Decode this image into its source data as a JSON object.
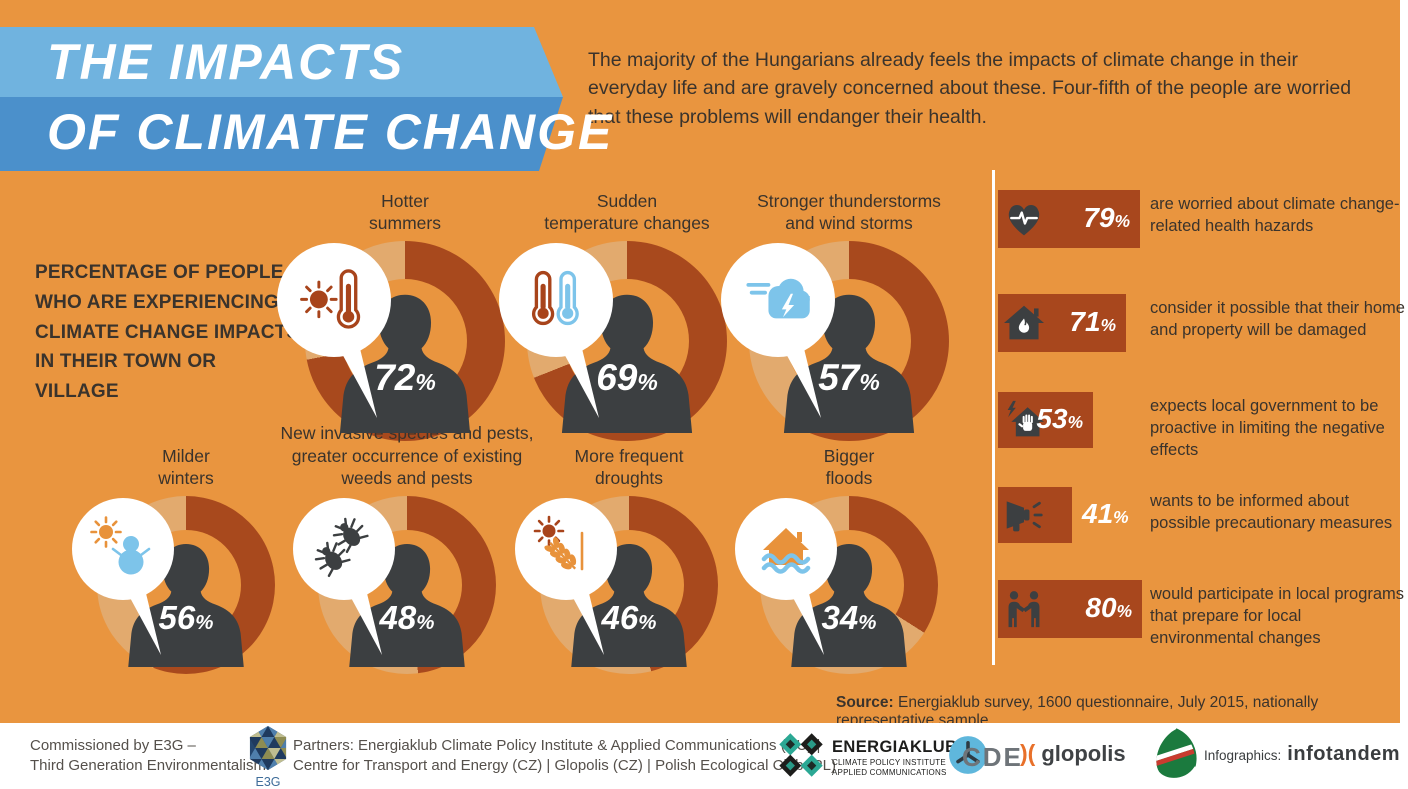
{
  "banner": {
    "title_line1": "THE IMPACTS",
    "title_line2": "OF CLIMATE CHANGE"
  },
  "intro": "The majority of the Hungarians already feels the impacts of climate change in their everyday life and are gravely concerned about these. Four-fifth of the people are worried that these problems will endanger their health.",
  "left_heading": "PERCENTAGE OF PEOPLE\nWHO ARE EXPERIENCING\nCLIMATE CHANGE IMPACTS\nIN THEIR TOWN OR VILLAGE",
  "chart_data": {
    "type": "pie",
    "title": "Percentage of people who are experiencing climate change impacts in their town or village",
    "unit": "percent",
    "donuts": [
      {
        "label": "Hotter\nsummers",
        "value": 72,
        "icon": "sun-thermometer-icon"
      },
      {
        "label": "Sudden\ntemperature changes",
        "value": 69,
        "icon": "hot-cold-thermometers-icon"
      },
      {
        "label": "Stronger thunderstorms\nand wind storms",
        "value": 57,
        "icon": "storm-cloud-icon"
      },
      {
        "label": "Milder\nwinters",
        "value": 56,
        "icon": "sun-snowman-icon"
      },
      {
        "label": "New invasive species and pests,\ngreater occurrence of existing\nweeds and pests",
        "value": 48,
        "icon": "bugs-icon"
      },
      {
        "label": "More frequent\ndroughts",
        "value": 46,
        "icon": "sun-wheat-icon"
      },
      {
        "label": "Bigger\nfloods",
        "value": 34,
        "icon": "flooded-house-icon"
      }
    ],
    "side_stats": [
      {
        "value": 79,
        "text": "are worried about climate change-related health hazards",
        "icon": "heartbeat-icon"
      },
      {
        "value": 71,
        "text": "consider it possible that their home and property will be damaged",
        "icon": "burning-house-icon"
      },
      {
        "value": 53,
        "text": "expects local government to be proactive in limiting the negative effects",
        "icon": "protected-house-icon"
      },
      {
        "value": 41,
        "text": "wants to be informed about possible precautionary measures",
        "icon": "megaphone-icon"
      },
      {
        "value": 80,
        "text": "would participate in local programs that prepare for local environmental changes",
        "icon": "handshake-icon"
      }
    ],
    "colors": {
      "background": "#E9953F",
      "ring_value": "#A8491D",
      "ring_remainder": "#E2AA6E",
      "silhouette": "#3C3F41",
      "stat_bar": "#A8471D",
      "icon_rust": "#A8441B",
      "icon_blue": "#7DC4EA",
      "icon_orange": "#E8923B",
      "banner_top": "#70B3DF",
      "banner_bottom": "#4B90CB"
    }
  },
  "source": {
    "label": "Source:",
    "text": " Energiaklub survey, 1600 questionnaire, July 2015, nationally representative sample"
  },
  "footer": {
    "commissioned": "Commissioned by E3G –\nThird Generation Environmentalism.",
    "e3g_label": "E3G",
    "partners": "Partners: Energiaklub Climate Policy Institute & Applied Communications (HU) |\nCentre for Transport and Energy (CZ) | Glopolis (CZ) | Polish Ecological Club (PL)",
    "energiaklub": {
      "name": "ENERGIAKLUB",
      "line1": "CLIMATE POLICY INSTITUTE",
      "line2": "APPLIED COMMUNICATIONS"
    },
    "cde_label": "CDE",
    "glopolis_symbol": ")(",
    "glopolis_label": "glopolis",
    "infographics_label": "Infographics:",
    "infotandem_label": "infotandem"
  }
}
